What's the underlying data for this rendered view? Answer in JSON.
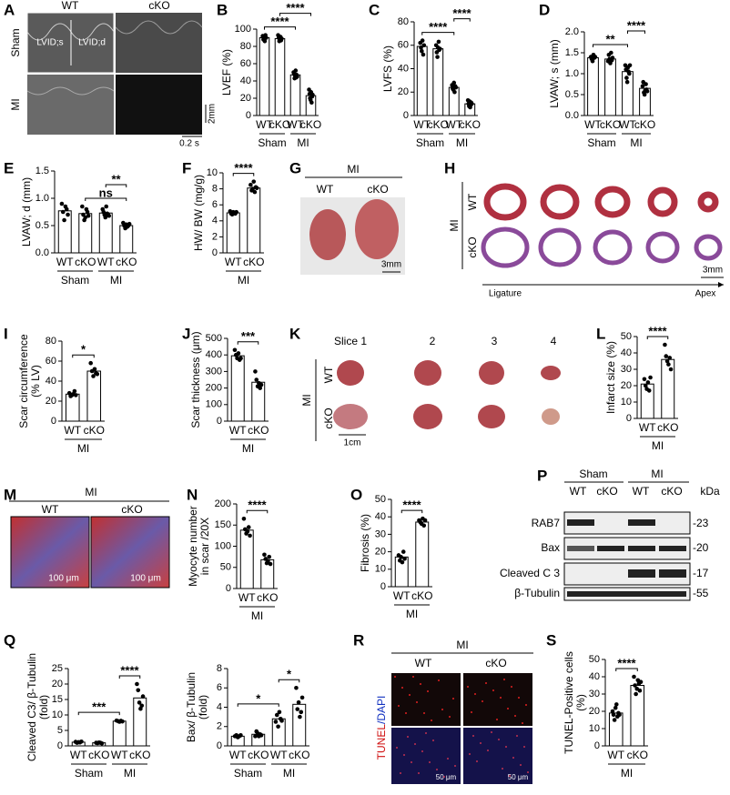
{
  "panel_letters": [
    "A",
    "B",
    "C",
    "D",
    "E",
    "F",
    "G",
    "H",
    "I",
    "J",
    "K",
    "L",
    "M",
    "N",
    "O",
    "P",
    "Q",
    "R",
    "S"
  ],
  "echo": {
    "columns": [
      "WT",
      "cKO"
    ],
    "rows": [
      "Sham",
      "MI"
    ],
    "labels": [
      "LVID;s",
      "LVID;d"
    ],
    "scale_y": "2mm",
    "scale_x": "0.2 s"
  },
  "heart_photo": {
    "group": "MI",
    "columns": [
      "WT",
      "cKO"
    ],
    "scale": "3mm"
  },
  "slices_H": {
    "group": "MI",
    "rows": [
      "WT",
      "cKO"
    ],
    "scale": "3mm",
    "start": "Ligature",
    "end": "Apex"
  },
  "slices_K": {
    "group": "MI",
    "rows": [
      "WT",
      "cKO"
    ],
    "columns": [
      "Slice 1",
      "2",
      "3",
      "4"
    ],
    "scale": "1cm"
  },
  "histology_M": {
    "group": "MI",
    "columns": [
      "WT",
      "cKO"
    ],
    "scale": "100 μm"
  },
  "western_P": {
    "groups": [
      "Sham",
      "MI"
    ],
    "lanes": [
      "WT",
      "cKO",
      "WT",
      "cKO"
    ],
    "unit": "kDa",
    "bands": [
      "RAB7",
      "Bax",
      "Cleaved C 3",
      "β-Tubulin"
    ],
    "markers": [
      "-23",
      "-20",
      "-17",
      "-55"
    ]
  },
  "tunel_R": {
    "group": "MI",
    "columns": [
      "WT",
      "cKO"
    ],
    "stain": [
      "TUNEL",
      "/DAPI"
    ],
    "scale": "50 μm"
  },
  "chart_data": [
    {
      "type": "bar",
      "ylabel": [
        "LVEF (%)"
      ],
      "categories": [
        "WT",
        "cKO",
        "WT",
        "cKO"
      ],
      "values": [
        90,
        89,
        47,
        23
      ],
      "points": [
        [
          92,
          88,
          91,
          86,
          93,
          90
        ],
        [
          93,
          90,
          86,
          88,
          91,
          87,
          89
        ],
        [
          50,
          48,
          43,
          46,
          52,
          44,
          47,
          45
        ],
        [
          30,
          25,
          20,
          18,
          27,
          15,
          22,
          24
        ]
      ],
      "group_labels": [
        "Sham",
        "MI"
      ],
      "ylim": [
        0,
        100
      ],
      "yticks": [
        0,
        20,
        40,
        60,
        80,
        100
      ],
      "significance": [
        "****",
        "****"
      ]
    },
    {
      "type": "bar",
      "ylabel": [
        "LVFS (%)"
      ],
      "categories": [
        "WT",
        "cKO",
        "WT",
        "cKO"
      ],
      "values": [
        59,
        57,
        24,
        10
      ],
      "points": [
        [
          62,
          58,
          55,
          64,
          52,
          60
        ],
        [
          60,
          54,
          50,
          58,
          63,
          56,
          57
        ],
        [
          26,
          23,
          22,
          28,
          20,
          25,
          24
        ],
        [
          13,
          10,
          8,
          12,
          7,
          9,
          11,
          10
        ]
      ],
      "group_labels": [
        "Sham",
        "MI"
      ],
      "ylim": [
        0,
        80
      ],
      "yticks": [
        0,
        20,
        40,
        60,
        80
      ],
      "significance": [
        "****",
        "****"
      ]
    },
    {
      "type": "bar",
      "ylabel": [
        "LVAW; s (mm)"
      ],
      "categories": [
        "WT",
        "cKO",
        "WT",
        "cKO"
      ],
      "values": [
        1.38,
        1.35,
        1.05,
        0.65
      ],
      "points": [
        [
          1.4,
          1.35,
          1.3,
          1.45,
          1.38,
          1.4
        ],
        [
          1.3,
          1.45,
          1.35,
          1.25,
          1.5,
          1.32,
          1.38
        ],
        [
          1.2,
          1.1,
          0.9,
          0.8,
          1.15,
          1.05,
          1.0,
          1.2
        ],
        [
          0.7,
          0.8,
          0.55,
          0.5,
          0.6,
          0.75,
          0.62,
          0.58
        ]
      ],
      "group_labels": [
        "Sham",
        "MI"
      ],
      "ylim": [
        0,
        2
      ],
      "yticks": [
        {
          "value": 0,
          "label": "0.0"
        },
        0.5,
        {
          "value": 1,
          "label": "1.0"
        },
        1.5,
        {
          "value": 2,
          "label": "2.0"
        }
      ],
      "significance": [
        "**",
        "****"
      ]
    },
    {
      "type": "bar",
      "ylabel": [
        "LVAW; d (mm)"
      ],
      "categories": [
        "WT",
        "cKO",
        "WT",
        "cKO"
      ],
      "values": [
        0.77,
        0.72,
        0.73,
        0.5
      ],
      "points": [
        [
          0.9,
          0.75,
          0.6,
          0.85,
          0.8,
          0.7
        ],
        [
          0.85,
          0.7,
          0.6,
          0.65,
          0.8,
          0.75,
          0.68
        ],
        [
          0.8,
          0.75,
          0.7,
          0.65,
          0.85,
          0.72,
          0.7,
          0.68
        ],
        [
          0.55,
          0.5,
          0.45,
          0.52,
          0.48,
          0.5,
          0.53
        ]
      ],
      "group_labels": [
        "Sham",
        "MI"
      ],
      "ylim": [
        0,
        1.5
      ],
      "yticks": [
        {
          "value": 0,
          "label": "0.0"
        },
        0.5,
        {
          "value": 1,
          "label": "1.0"
        },
        1.5
      ],
      "significance": [
        "ns",
        "**"
      ]
    },
    {
      "type": "bar",
      "ylabel": [
        "HW/ BW (mg/g)"
      ],
      "categories": [
        "WT",
        "cKO"
      ],
      "values": [
        5.0,
        8.1
      ],
      "points": [
        [
          5.2,
          4.9,
          4.8,
          5.1,
          5.0,
          4.9,
          5.1
        ],
        [
          8.5,
          7.8,
          8.0,
          8.9,
          7.6,
          8.2,
          8.1
        ]
      ],
      "group_labels": [
        "MI"
      ],
      "ylim": [
        0,
        10
      ],
      "yticks": [
        0,
        2,
        4,
        6,
        8,
        10
      ],
      "significance": [
        "****"
      ]
    },
    {
      "type": "bar",
      "ylabel": [
        "Scar circumference",
        "(% LV)"
      ],
      "categories": [
        "WT",
        "cKO"
      ],
      "values": [
        27,
        50
      ],
      "points": [
        [
          28,
          25,
          26,
          27,
          30,
          26
        ],
        [
          58,
          50,
          45,
          52,
          48,
          47
        ]
      ],
      "group_labels": [
        "MI"
      ],
      "ylim": [
        0,
        80
      ],
      "yticks": [
        0,
        20,
        40,
        60,
        80
      ],
      "significance": [
        "*"
      ]
    },
    {
      "type": "bar",
      "ylabel": [
        "Scar thickness (μm)"
      ],
      "categories": [
        "WT",
        "cKO"
      ],
      "values": [
        395,
        235
      ],
      "points": [
        [
          430,
          400,
          380,
          410,
          370,
          380
        ],
        [
          300,
          250,
          210,
          230,
          200,
          220
        ]
      ],
      "group_labels": [
        "MI"
      ],
      "ylim": [
        0,
        500
      ],
      "yticks": [
        0,
        100,
        200,
        300,
        400,
        500
      ],
      "significance": [
        "***"
      ]
    },
    {
      "type": "bar",
      "ylabel": [
        "Infarct size (%)"
      ],
      "categories": [
        "WT",
        "cKO"
      ],
      "values": [
        21,
        36
      ],
      "points": [
        [
          24,
          20,
          18,
          22,
          17,
          25
        ],
        [
          45,
          38,
          35,
          33,
          37,
          30
        ]
      ],
      "group_labels": [
        "MI"
      ],
      "ylim": [
        0,
        50
      ],
      "yticks": [
        0,
        10,
        20,
        30,
        40,
        50
      ],
      "significance": [
        "****"
      ]
    },
    {
      "type": "bar",
      "ylabel": [
        "Myocyte number",
        "in scar /20X"
      ],
      "categories": [
        "WT",
        "cKO"
      ],
      "values": [
        138,
        68
      ],
      "points": [
        [
          165,
          140,
          130,
          135,
          145,
          125
        ],
        [
          80,
          70,
          60,
          65,
          75,
          58
        ]
      ],
      "group_labels": [
        "MI"
      ],
      "ylim": [
        0,
        200
      ],
      "yticks": [
        0,
        50,
        100,
        150,
        200
      ],
      "significance": [
        "****"
      ]
    },
    {
      "type": "bar",
      "ylabel": [
        "Fibrosis (%)"
      ],
      "categories": [
        "WT",
        "cKO"
      ],
      "values": [
        17,
        37
      ],
      "points": [
        [
          18,
          15,
          17,
          14,
          20,
          16
        ],
        [
          38,
          37,
          36,
          39,
          35,
          38
        ]
      ],
      "group_labels": [
        "MI"
      ],
      "ylim": [
        0,
        50
      ],
      "yticks": [
        0,
        10,
        20,
        30,
        40,
        50
      ],
      "significance": [
        "****"
      ]
    },
    {
      "type": "bar",
      "ylabel": [
        "Cleaved C3/ β-Tubulin",
        "(fold)"
      ],
      "categories": [
        "WT",
        "cKO",
        "WT",
        "cKO"
      ],
      "values": [
        1.2,
        1.0,
        8.0,
        15.5
      ],
      "points": [
        [
          1.3,
          1.0,
          1.2,
          1.1,
          1.4
        ],
        [
          1.0,
          0.9,
          1.1,
          1.0,
          0.8
        ],
        [
          8.2,
          8.0,
          7.8,
          8.1,
          7.9
        ],
        [
          20,
          18,
          14,
          12,
          13,
          16
        ]
      ],
      "group_labels": [
        "Sham",
        "MI"
      ],
      "ylim": [
        0,
        25
      ],
      "yticks": [
        0,
        5,
        10,
        15,
        20,
        25
      ],
      "significance": [
        "***",
        "****"
      ]
    },
    {
      "type": "bar",
      "ylabel": [
        "Bax/ β-Tubulin",
        "(fold)"
      ],
      "categories": [
        "WT",
        "cKO",
        "WT",
        "cKO"
      ],
      "values": [
        1.0,
        1.2,
        2.8,
        4.3
      ],
      "points": [
        [
          1.0,
          1.1,
          0.9,
          1.0,
          1.1
        ],
        [
          1.0,
          1.5,
          1.3,
          1.0,
          1.2,
          1.1
        ],
        [
          2.5,
          3.2,
          2.0,
          3.5,
          2.8,
          2.6
        ],
        [
          6.0,
          3.8,
          4.5,
          3.0,
          3.5,
          5.0
        ]
      ],
      "group_labels": [
        "Sham",
        "MI"
      ],
      "ylim": [
        0,
        8
      ],
      "yticks": [
        0,
        2,
        4,
        6,
        8
      ],
      "significance": [
        "*",
        "*"
      ]
    },
    {
      "type": "bar",
      "ylabel": [
        "TUNEL-Positive cells",
        "(%)"
      ],
      "categories": [
        "WT",
        "cKO"
      ],
      "values": [
        19,
        35
      ],
      "points": [
        [
          20,
          18,
          15,
          22,
          24,
          17,
          19,
          18
        ],
        [
          40,
          35,
          30,
          33,
          38,
          36,
          32,
          37
        ]
      ],
      "group_labels": [
        "MI"
      ],
      "ylim": [
        0,
        50
      ],
      "yticks": [
        0,
        10,
        20,
        30,
        40,
        50
      ],
      "significance": [
        "****"
      ]
    }
  ]
}
